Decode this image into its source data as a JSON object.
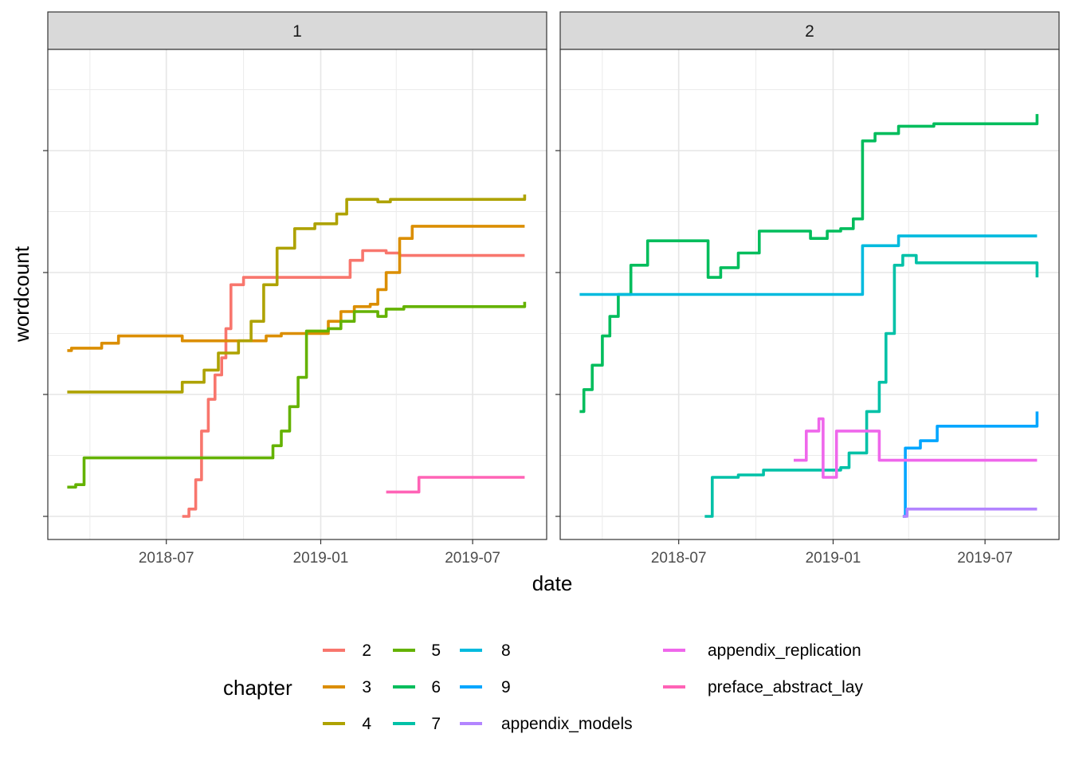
{
  "chart_data": {
    "type": "line",
    "xlabel": "date",
    "ylabel": "wordcount",
    "x_ticks": [
      "2018-07",
      "2019-01",
      "2019-07"
    ],
    "y_ticks_labeled": false,
    "legend": {
      "title": "chapter",
      "placement": "bottom",
      "entries": [
        "2",
        "3",
        "4",
        "5",
        "6",
        "7",
        "8",
        "9",
        "appendix_models",
        "appendix_replication",
        "preface_abstract_lay"
      ]
    },
    "colors": {
      "2": "#F8766D",
      "3": "#DB8E00",
      "4": "#AEA200",
      "5": "#64B200",
      "6": "#00BD5C",
      "7": "#00C1A7",
      "8": "#00BADE",
      "9": "#00A6FF",
      "appendix_models": "#B385FF",
      "appendix_replication": "#EF67EB",
      "preface_abstract_lay": "#FF63B6"
    },
    "y_scale": "relative wordcount (0 = bottom, 1 = top of panel)",
    "panels": [
      {
        "label": "1",
        "series": [
          {
            "name": "2",
            "points": [
              [
                "2018-07-20",
                0.0
              ],
              [
                "2018-07-28",
                0.03
              ],
              [
                "2018-08-05",
                0.15
              ],
              [
                "2018-08-12",
                0.35
              ],
              [
                "2018-08-20",
                0.48
              ],
              [
                "2018-08-28",
                0.58
              ],
              [
                "2018-09-05",
                0.65
              ],
              [
                "2018-09-10",
                0.77
              ],
              [
                "2018-09-16",
                0.95
              ],
              [
                "2018-10-01",
                0.98
              ],
              [
                "2019-01-28",
                0.98
              ],
              [
                "2019-02-05",
                1.05
              ],
              [
                "2019-02-20",
                1.09
              ],
              [
                "2019-03-20",
                1.08
              ],
              [
                "2019-04-05",
                1.07
              ],
              [
                "2019-09-01",
                1.07
              ]
            ]
          },
          {
            "name": "3",
            "points": [
              [
                "2018-03-05",
                0.68
              ],
              [
                "2018-03-10",
                0.69
              ],
              [
                "2018-04-15",
                0.71
              ],
              [
                "2018-05-05",
                0.74
              ],
              [
                "2018-07-10",
                0.74
              ],
              [
                "2018-07-20",
                0.72
              ],
              [
                "2018-10-05",
                0.72
              ],
              [
                "2018-10-28",
                0.74
              ],
              [
                "2018-11-15",
                0.75
              ],
              [
                "2018-12-15",
                0.75
              ],
              [
                "2019-01-10",
                0.8
              ],
              [
                "2019-01-25",
                0.84
              ],
              [
                "2019-02-10",
                0.86
              ],
              [
                "2019-03-01",
                0.87
              ],
              [
                "2019-03-10",
                0.93
              ],
              [
                "2019-03-20",
                1.0
              ],
              [
                "2019-04-05",
                1.14
              ],
              [
                "2019-04-20",
                1.19
              ],
              [
                "2019-09-01",
                1.19
              ]
            ]
          },
          {
            "name": "4",
            "points": [
              [
                "2018-03-05",
                0.51
              ],
              [
                "2018-07-10",
                0.51
              ],
              [
                "2018-07-20",
                0.55
              ],
              [
                "2018-08-15",
                0.6
              ],
              [
                "2018-09-01",
                0.67
              ],
              [
                "2018-09-25",
                0.72
              ],
              [
                "2018-10-10",
                0.8
              ],
              [
                "2018-10-25",
                0.95
              ],
              [
                "2018-11-10",
                1.1
              ],
              [
                "2018-12-01",
                1.18
              ],
              [
                "2018-12-25",
                1.2
              ],
              [
                "2019-01-20",
                1.24
              ],
              [
                "2019-02-01",
                1.3
              ],
              [
                "2019-03-10",
                1.29
              ],
              [
                "2019-03-25",
                1.3
              ],
              [
                "2019-09-01",
                1.32
              ]
            ]
          },
          {
            "name": "5",
            "points": [
              [
                "2018-03-05",
                0.12
              ],
              [
                "2018-03-15",
                0.13
              ],
              [
                "2018-03-25",
                0.24
              ],
              [
                "2018-10-25",
                0.24
              ],
              [
                "2018-11-05",
                0.29
              ],
              [
                "2018-11-15",
                0.35
              ],
              [
                "2018-11-25",
                0.45
              ],
              [
                "2018-12-05",
                0.57
              ],
              [
                "2018-12-15",
                0.76
              ],
              [
                "2019-01-10",
                0.77
              ],
              [
                "2019-01-25",
                0.8
              ],
              [
                "2019-02-10",
                0.84
              ],
              [
                "2019-03-10",
                0.82
              ],
              [
                "2019-03-20",
                0.85
              ],
              [
                "2019-04-10",
                0.86
              ],
              [
                "2019-09-01",
                0.88
              ]
            ]
          },
          {
            "name": "preface_abstract_lay",
            "points": [
              [
                "2019-03-20",
                0.1
              ],
              [
                "2019-04-25",
                0.1
              ],
              [
                "2019-04-28",
                0.16
              ],
              [
                "2019-09-01",
                0.16
              ]
            ]
          }
        ]
      },
      {
        "label": "2",
        "series": [
          {
            "name": "6",
            "points": [
              [
                "2018-03-05",
                0.43
              ],
              [
                "2018-03-10",
                0.52
              ],
              [
                "2018-03-20",
                0.62
              ],
              [
                "2018-04-01",
                0.74
              ],
              [
                "2018-04-10",
                0.82
              ],
              [
                "2018-04-20",
                0.91
              ],
              [
                "2018-05-05",
                1.03
              ],
              [
                "2018-05-25",
                1.13
              ],
              [
                "2018-07-25",
                1.13
              ],
              [
                "2018-08-05",
                0.98
              ],
              [
                "2018-08-20",
                1.02
              ],
              [
                "2018-09-10",
                1.08
              ],
              [
                "2018-10-05",
                1.17
              ],
              [
                "2018-11-20",
                1.17
              ],
              [
                "2018-12-05",
                1.14
              ],
              [
                "2018-12-25",
                1.17
              ],
              [
                "2019-01-10",
                1.18
              ],
              [
                "2019-01-25",
                1.22
              ],
              [
                "2019-02-05",
                1.54
              ],
              [
                "2019-02-20",
                1.57
              ],
              [
                "2019-03-20",
                1.6
              ],
              [
                "2019-05-01",
                1.61
              ],
              [
                "2019-09-01",
                1.65
              ]
            ]
          },
          {
            "name": "7",
            "points": [
              [
                "2018-08-01",
                0.0
              ],
              [
                "2018-08-10",
                0.16
              ],
              [
                "2018-09-10",
                0.17
              ],
              [
                "2018-10-10",
                0.19
              ],
              [
                "2019-01-10",
                0.2
              ],
              [
                "2019-01-20",
                0.26
              ],
              [
                "2019-02-10",
                0.43
              ],
              [
                "2019-02-25",
                0.55
              ],
              [
                "2019-03-05",
                0.75
              ],
              [
                "2019-03-15",
                1.03
              ],
              [
                "2019-03-25",
                1.07
              ],
              [
                "2019-04-10",
                1.04
              ],
              [
                "2019-09-01",
                0.98
              ]
            ]
          },
          {
            "name": "8",
            "points": [
              [
                "2018-03-05",
                0.91
              ],
              [
                "2019-02-01",
                0.91
              ],
              [
                "2019-02-05",
                1.11
              ],
              [
                "2019-03-20",
                1.15
              ],
              [
                "2019-09-01",
                1.15
              ]
            ]
          },
          {
            "name": "9",
            "points": [
              [
                "2019-03-25",
                0.0
              ],
              [
                "2019-03-28",
                0.28
              ],
              [
                "2019-04-15",
                0.31
              ],
              [
                "2019-05-05",
                0.37
              ],
              [
                "2019-09-01",
                0.43
              ]
            ]
          },
          {
            "name": "appendix_models",
            "points": [
              [
                "2019-03-25",
                0.0
              ],
              [
                "2019-03-30",
                0.03
              ],
              [
                "2019-09-01",
                0.03
              ]
            ]
          },
          {
            "name": "appendix_replication",
            "points": [
              [
                "2018-11-15",
                0.23
              ],
              [
                "2018-11-30",
                0.35
              ],
              [
                "2018-12-15",
                0.4
              ],
              [
                "2018-12-20",
                0.16
              ],
              [
                "2019-01-05",
                0.35
              ],
              [
                "2019-02-15",
                0.35
              ],
              [
                "2019-02-25",
                0.23
              ],
              [
                "2019-09-01",
                0.23
              ]
            ]
          }
        ]
      }
    ]
  }
}
